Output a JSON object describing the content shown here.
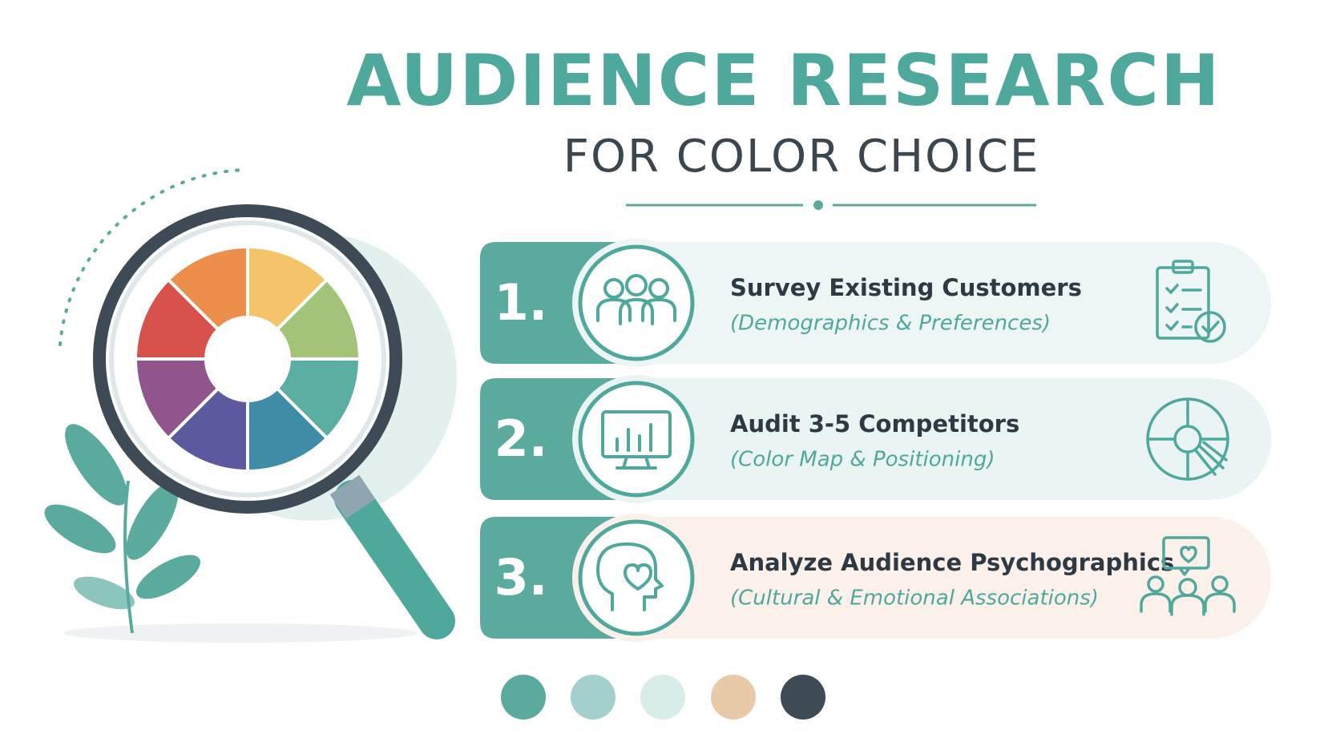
{
  "header": {
    "title": "AUDIENCE RESEARCH",
    "subtitle": "FOR COLOR CHOICE"
  },
  "steps": [
    {
      "number": "1.",
      "title": "Survey Existing Customers",
      "detail": "(Demographics & Preferences)"
    },
    {
      "number": "2.",
      "title": "Audit 3-5 Competitors",
      "detail": "(Color Map & Positioning)"
    },
    {
      "number": "3.",
      "title": "Analyze Audience Psychographics",
      "detail": "(Cultural & Emotional Associations)"
    }
  ]
}
